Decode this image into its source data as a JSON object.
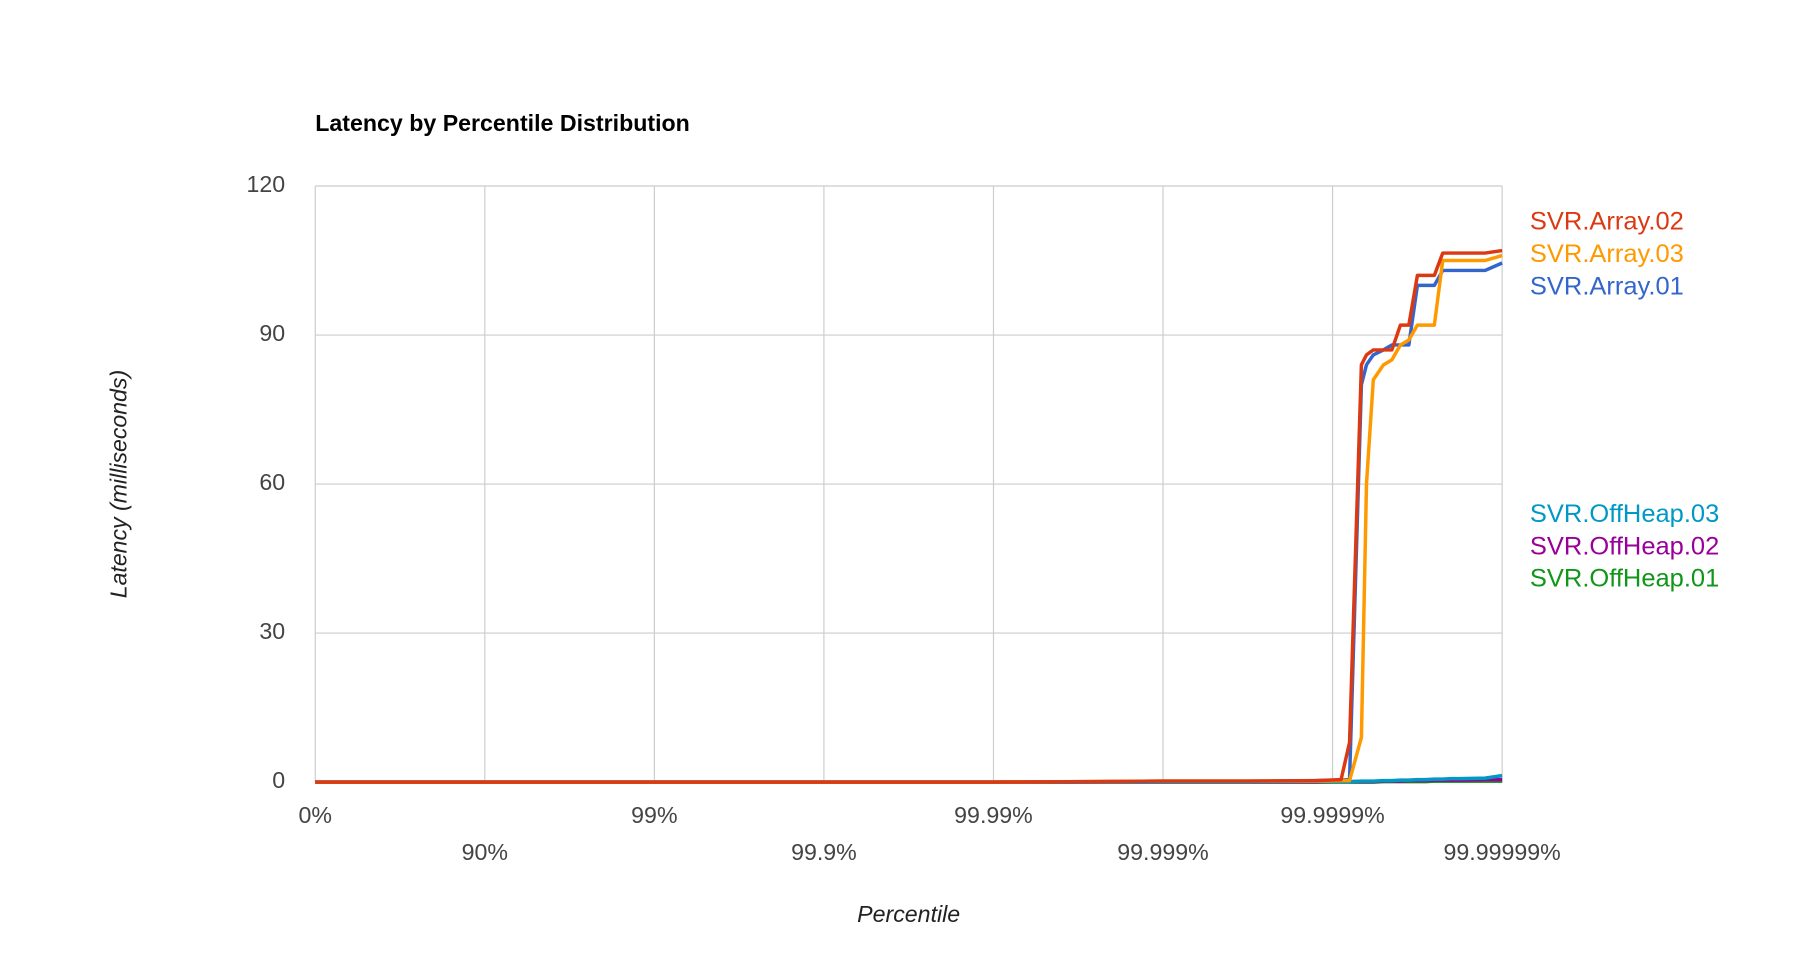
{
  "chart_data": {
    "type": "line",
    "title": "Latency by Percentile Distribution",
    "x_label": "Percentile",
    "y_label": "Latency (milliseconds)",
    "xscale": "percentile-log",
    "x": [
      0,
      90,
      99,
      99.9,
      99.99,
      99.99749,
      99.999,
      99.999684,
      99.999874,
      99.9999109,
      99.9999206,
      99.9999324,
      99.9999369,
      99.9999425,
      99.9999499,
      99.9999553,
      99.9999602,
      99.9999645,
      99.9999684,
      99.9999718,
      99.9999749,
      99.9999776,
      99.99998,
      99.9999822,
      99.9999874,
      99.99999
    ],
    "series": [
      {
        "name": "SVR.Array.02",
        "color": "#dc3912",
        "values": [
          0,
          0,
          0,
          0,
          0,
          0.1,
          0.2,
          0.2,
          0.3,
          0.5,
          8,
          84,
          86,
          87,
          87,
          87,
          92,
          92,
          102,
          102,
          102,
          106.5,
          106.5,
          106.5,
          106.5,
          107
        ]
      },
      {
        "name": "SVR.Array.03",
        "color": "#ff9900",
        "values": [
          0,
          0,
          0,
          0,
          0,
          0.1,
          0.2,
          0.2,
          0.2,
          0.3,
          0.3,
          9,
          60,
          81,
          84,
          85,
          88,
          89,
          92,
          92,
          92,
          105,
          105,
          105,
          105,
          106
        ]
      },
      {
        "name": "SVR.Array.01",
        "color": "#3366cc",
        "values": [
          0,
          0,
          0,
          0,
          0,
          0.1,
          0.2,
          0.2,
          0.3,
          0.4,
          0.5,
          80,
          84,
          86,
          87,
          88,
          88,
          88,
          100,
          100,
          100,
          103,
          103,
          103,
          103,
          104.5
        ]
      },
      {
        "name": "SVR.OffHeap.03",
        "color": "#0099c6",
        "values": [
          0,
          0,
          0,
          0,
          0,
          0,
          0,
          0,
          0.1,
          0.1,
          0.1,
          0.2,
          0.2,
          0.2,
          0.3,
          0.3,
          0.4,
          0.4,
          0.5,
          0.5,
          0.6,
          0.6,
          0.7,
          0.7,
          0.8,
          1.3
        ]
      },
      {
        "name": "SVR.OffHeap.02",
        "color": "#990099",
        "values": [
          0,
          0,
          0,
          0,
          0,
          0,
          0,
          0,
          0,
          0.1,
          0.1,
          0.1,
          0.1,
          0.1,
          0.2,
          0.2,
          0.2,
          0.3,
          0.3,
          0.3,
          0.4,
          0.4,
          0.4,
          0.4,
          0.5,
          0.5
        ]
      },
      {
        "name": "SVR.OffHeap.01",
        "color": "#109618",
        "values": [
          0,
          0,
          0,
          0,
          0,
          0,
          0,
          0,
          0,
          0,
          0,
          0,
          0,
          0,
          0.1,
          0.1,
          0.1,
          0.1,
          0.1,
          0.1,
          0.2,
          0.2,
          0.2,
          0.2,
          0.2,
          0.2
        ]
      }
    ],
    "xlim": [
      0,
      99.99999
    ],
    "xticks": [
      {
        "value": 0,
        "label": "0%"
      },
      {
        "value": 90,
        "label": "90%"
      },
      {
        "value": 99,
        "label": "99%"
      },
      {
        "value": 99.9,
        "label": "99.9%"
      },
      {
        "value": 99.99,
        "label": "99.99%"
      },
      {
        "value": 99.999,
        "label": "99.999%"
      },
      {
        "value": 99.9999,
        "label": "99.9999%"
      },
      {
        "value": 99.99999,
        "label": "99.99999%"
      }
    ],
    "ylim": [
      0,
      120
    ],
    "yticks": [
      0,
      30,
      60,
      90,
      120
    ],
    "grid": true,
    "legend": "right"
  }
}
